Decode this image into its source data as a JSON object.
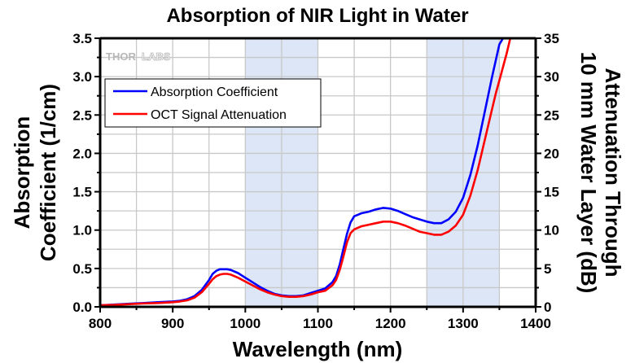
{
  "chart_data": {
    "type": "line",
    "title": "Absorption of NIR Light in Water",
    "xlabel": "Wavelength (nm)",
    "ylabel_left": [
      "Absorption",
      "Coefficient (1/cm)"
    ],
    "ylabel_right": [
      "Attenuation Through",
      "10 mm Water Layer (dB)"
    ],
    "xlim": [
      800,
      1400
    ],
    "ylim_left": [
      0,
      3.5
    ],
    "ylim_right": [
      0,
      35
    ],
    "xticks": [
      "800",
      "900",
      "1000",
      "1100",
      "1200",
      "1300",
      "1400"
    ],
    "yticks_left": [
      "0.0",
      "0.5",
      "1.0",
      "1.5",
      "2.0",
      "2.5",
      "3.0",
      "3.5"
    ],
    "yticks_right": [
      "0",
      "5",
      "10",
      "15",
      "20",
      "25",
      "30",
      "35"
    ],
    "grid": true,
    "legend_position": "top-left",
    "watermark": {
      "bold": "THOR",
      "light": "LABS"
    },
    "shaded_regions": [
      {
        "from": 1000,
        "to": 1100,
        "color": "#dce6f7"
      },
      {
        "from": 1250,
        "to": 1350,
        "color": "#dce6f7"
      }
    ],
    "series": [
      {
        "name": "Absorption Coefficient",
        "color": "#0000ff",
        "axis": "left",
        "x": [
          800,
          820,
          840,
          860,
          880,
          900,
          910,
          920,
          930,
          940,
          950,
          955,
          960,
          965,
          970,
          975,
          980,
          990,
          1000,
          1010,
          1020,
          1030,
          1040,
          1050,
          1060,
          1070,
          1080,
          1090,
          1100,
          1110,
          1120,
          1125,
          1130,
          1135,
          1140,
          1145,
          1150,
          1155,
          1160,
          1170,
          1180,
          1190,
          1200,
          1210,
          1220,
          1230,
          1240,
          1250,
          1260,
          1270,
          1280,
          1290,
          1300,
          1310,
          1320,
          1330,
          1340,
          1350,
          1355
        ],
        "y": [
          0.02,
          0.03,
          0.04,
          0.05,
          0.06,
          0.07,
          0.08,
          0.1,
          0.14,
          0.22,
          0.35,
          0.43,
          0.47,
          0.49,
          0.49,
          0.49,
          0.48,
          0.44,
          0.38,
          0.32,
          0.26,
          0.21,
          0.17,
          0.15,
          0.14,
          0.14,
          0.15,
          0.18,
          0.21,
          0.24,
          0.32,
          0.4,
          0.55,
          0.75,
          0.95,
          1.1,
          1.18,
          1.2,
          1.22,
          1.24,
          1.27,
          1.29,
          1.28,
          1.25,
          1.21,
          1.17,
          1.14,
          1.11,
          1.09,
          1.09,
          1.14,
          1.24,
          1.42,
          1.72,
          2.1,
          2.55,
          3.0,
          3.42,
          3.5
        ]
      },
      {
        "name": "OCT Signal Attenuation",
        "color": "#ff0000",
        "axis": "right",
        "x": [
          800,
          820,
          840,
          860,
          880,
          900,
          910,
          920,
          930,
          940,
          950,
          955,
          960,
          965,
          970,
          975,
          980,
          990,
          1000,
          1010,
          1020,
          1030,
          1040,
          1050,
          1060,
          1070,
          1080,
          1090,
          1100,
          1110,
          1120,
          1125,
          1130,
          1135,
          1140,
          1145,
          1150,
          1155,
          1160,
          1170,
          1180,
          1190,
          1200,
          1210,
          1220,
          1230,
          1240,
          1250,
          1260,
          1270,
          1280,
          1290,
          1300,
          1310,
          1320,
          1330,
          1340,
          1345,
          1350,
          1360,
          1365
        ],
        "y": [
          0.2,
          0.25,
          0.35,
          0.45,
          0.5,
          0.6,
          0.7,
          0.85,
          1.2,
          1.9,
          3.0,
          3.6,
          4.0,
          4.2,
          4.3,
          4.3,
          4.2,
          3.8,
          3.3,
          2.8,
          2.3,
          1.9,
          1.6,
          1.4,
          1.3,
          1.3,
          1.4,
          1.6,
          1.9,
          2.1,
          2.8,
          3.5,
          4.8,
          6.5,
          8.4,
          9.6,
          10.1,
          10.3,
          10.5,
          10.7,
          10.9,
          11.1,
          11.1,
          10.9,
          10.6,
          10.2,
          9.8,
          9.6,
          9.4,
          9.4,
          9.8,
          10.6,
          12.0,
          14.5,
          17.8,
          21.8,
          25.8,
          27.8,
          29.5,
          33.0,
          35.0
        ]
      }
    ]
  }
}
